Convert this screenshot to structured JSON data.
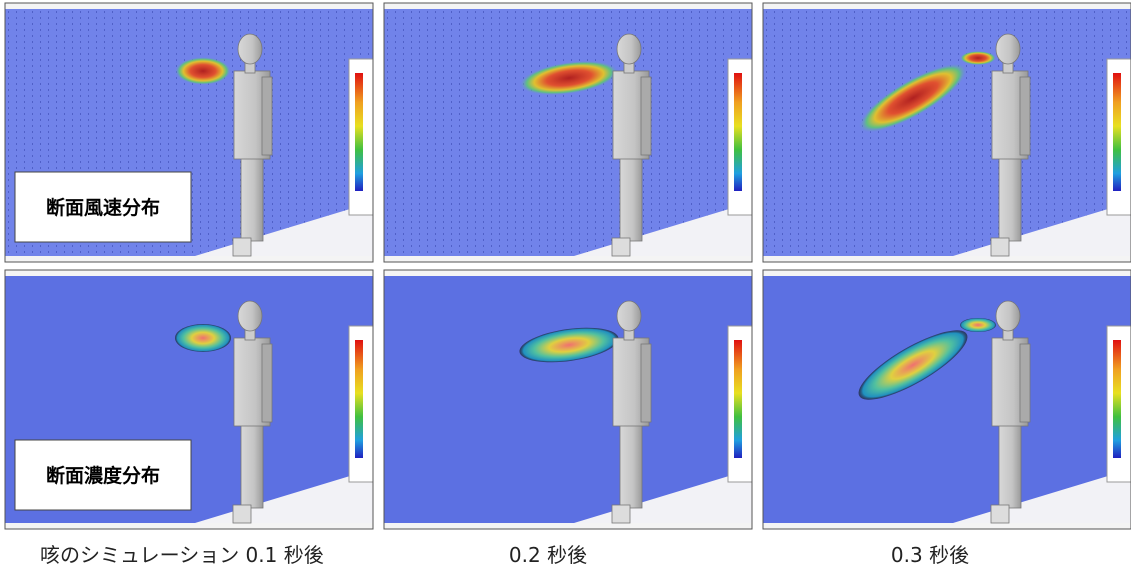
{
  "row_labels": [
    "断面風速分布",
    "断面濃度分布"
  ],
  "captions": [
    "咳のシミュレーション  0.1 秒後",
    "0.2 秒後",
    "0.3 秒後"
  ]
}
